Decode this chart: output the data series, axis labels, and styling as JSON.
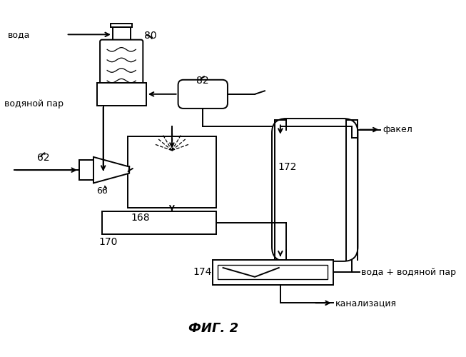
{
  "title": "ФИГ. 2",
  "bg_color": "#ffffff",
  "line_color": "#000000",
  "labels": {
    "voda": "вода",
    "vodyanoy_par": "водяной пар",
    "fakel": "факел",
    "voda_vodyanoy": "вода + водяной пар",
    "kanalizatsiya": "канализация"
  },
  "numbers": {
    "n80": "80",
    "n82": "82",
    "n62": "62",
    "n66": "66",
    "n168": "168",
    "n170": "170",
    "n172": "172",
    "n174": "174"
  }
}
